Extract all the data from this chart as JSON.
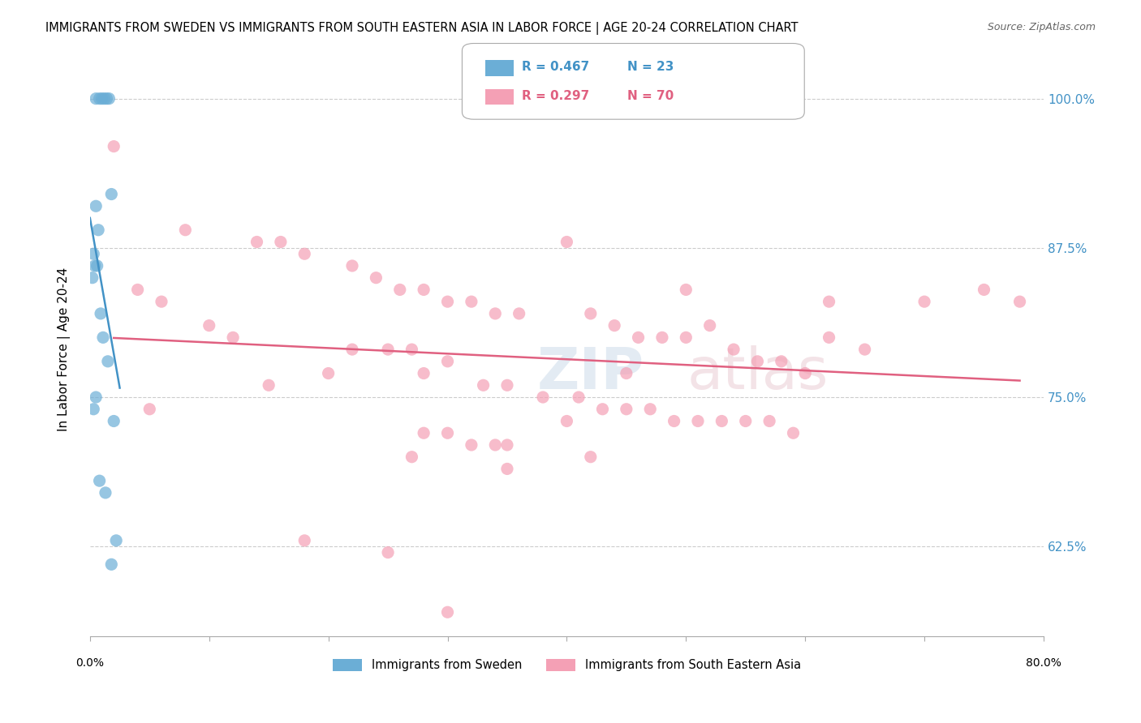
{
  "title": "IMMIGRANTS FROM SWEDEN VS IMMIGRANTS FROM SOUTH EASTERN ASIA IN LABOR FORCE | AGE 20-24 CORRELATION CHART",
  "source": "Source: ZipAtlas.com",
  "xlabel_bottom_left": "0.0%",
  "xlabel_bottom_right": "80.0%",
  "ylabel": "In Labor Force | Age 20-24",
  "ytick_labels": [
    "",
    "62.5%",
    "75.0%",
    "87.5%",
    "100.0%"
  ],
  "ytick_values": [
    0.56,
    0.625,
    0.75,
    0.875,
    1.0
  ],
  "xlim": [
    0.0,
    0.8
  ],
  "ylim": [
    0.55,
    1.03
  ],
  "legend_r1": "R = 0.467",
  "legend_n1": "N = 23",
  "legend_r2": "R = 0.297",
  "legend_n2": "N = 70",
  "legend_label1": "Immigrants from Sweden",
  "legend_label2": "Immigrants from South Eastern Asia",
  "color_blue": "#6baed6",
  "color_pink": "#f4a0b5",
  "color_blue_line": "#4292c6",
  "color_pink_line": "#e06080",
  "watermark": "ZIPatlas",
  "sweden_x": [
    0.005,
    0.008,
    0.01,
    0.012,
    0.014,
    0.016,
    0.018,
    0.005,
    0.007,
    0.003,
    0.006,
    0.004,
    0.002,
    0.009,
    0.011,
    0.015,
    0.005,
    0.003,
    0.02,
    0.008,
    0.013,
    0.022,
    0.018
  ],
  "sweden_y": [
    1.0,
    1.0,
    1.0,
    1.0,
    1.0,
    1.0,
    0.92,
    0.91,
    0.89,
    0.87,
    0.86,
    0.86,
    0.85,
    0.82,
    0.8,
    0.78,
    0.75,
    0.74,
    0.73,
    0.68,
    0.67,
    0.63,
    0.61
  ],
  "sea_x": [
    0.38,
    0.02,
    0.08,
    0.14,
    0.16,
    0.18,
    0.22,
    0.24,
    0.26,
    0.28,
    0.3,
    0.32,
    0.34,
    0.36,
    0.4,
    0.42,
    0.44,
    0.46,
    0.48,
    0.5,
    0.52,
    0.54,
    0.56,
    0.58,
    0.6,
    0.04,
    0.06,
    0.1,
    0.12,
    0.2,
    0.25,
    0.28,
    0.3,
    0.33,
    0.35,
    0.38,
    0.41,
    0.43,
    0.45,
    0.47,
    0.49,
    0.51,
    0.53,
    0.55,
    0.57,
    0.59,
    0.62,
    0.65,
    0.7,
    0.75,
    0.78,
    0.62,
    0.28,
    0.3,
    0.32,
    0.34,
    0.05,
    0.15,
    0.22,
    0.27,
    0.35,
    0.4,
    0.45,
    0.5,
    0.27,
    0.35,
    0.42,
    0.18,
    0.25,
    0.3
  ],
  "sea_y": [
    1.0,
    0.96,
    0.89,
    0.88,
    0.88,
    0.87,
    0.86,
    0.85,
    0.84,
    0.84,
    0.83,
    0.83,
    0.82,
    0.82,
    0.88,
    0.82,
    0.81,
    0.8,
    0.8,
    0.84,
    0.81,
    0.79,
    0.78,
    0.78,
    0.77,
    0.84,
    0.83,
    0.81,
    0.8,
    0.77,
    0.79,
    0.77,
    0.78,
    0.76,
    0.76,
    0.75,
    0.75,
    0.74,
    0.74,
    0.74,
    0.73,
    0.73,
    0.73,
    0.73,
    0.73,
    0.72,
    0.8,
    0.79,
    0.83,
    0.84,
    0.83,
    0.83,
    0.72,
    0.72,
    0.71,
    0.71,
    0.74,
    0.76,
    0.79,
    0.79,
    0.71,
    0.73,
    0.77,
    0.8,
    0.7,
    0.69,
    0.7,
    0.63,
    0.62,
    0.57
  ]
}
